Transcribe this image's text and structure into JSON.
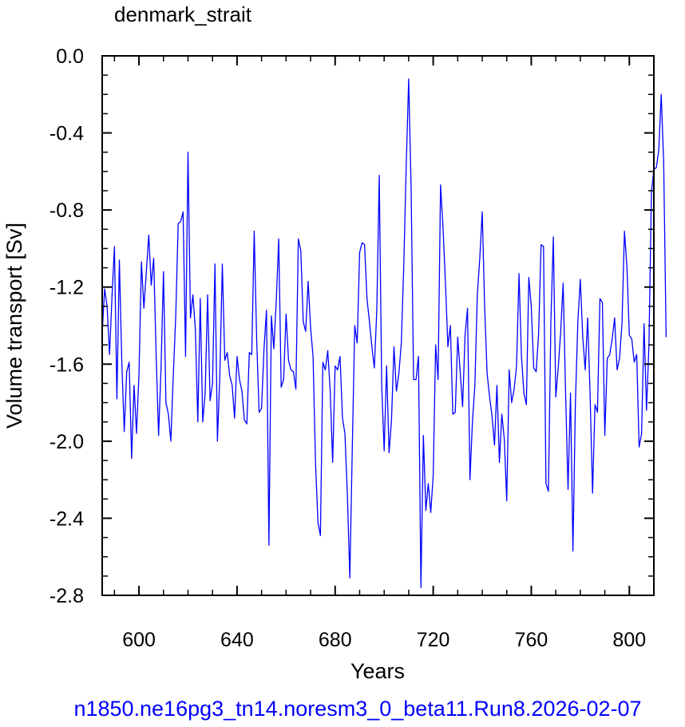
{
  "colors": {
    "line": "#0000ff",
    "axis": "#000000",
    "footer": "#0000ff",
    "background": "#ffffff"
  },
  "footer": {
    "text": "n1850.ne16pg3_tn14.noresm3_0_beta11.Run8.2026-02-07"
  },
  "chart_data": {
    "type": "line",
    "title": "denmark_strait",
    "xlabel": "Years",
    "ylabel": "Volume transport [Sv]",
    "xlim": [
      585,
      810
    ],
    "ylim": [
      -2.8,
      0.0
    ],
    "x_ticks": [
      600,
      640,
      680,
      720,
      760,
      800
    ],
    "x_tick_labels": [
      "600",
      "640",
      "680",
      "720",
      "760",
      "800"
    ],
    "y_ticks": [
      0.0,
      -0.4,
      -0.8,
      -1.2,
      -1.6,
      -2.0,
      -2.4,
      -2.8
    ],
    "y_tick_labels": [
      "0.0",
      "-0.4",
      "-0.8",
      "-1.2",
      "-1.6",
      "-2.0",
      "-2.4",
      "-2.8"
    ],
    "grid": false,
    "series": [
      {
        "x_start": 585,
        "x_step": 1,
        "values": [
          -1.44,
          -1.21,
          -1.3,
          -1.55,
          -1.25,
          -0.99,
          -1.78,
          -1.06,
          -1.59,
          -1.95,
          -1.64,
          -1.59,
          -2.09,
          -1.71,
          -1.96,
          -1.65,
          -1.07,
          -1.31,
          -1.12,
          -0.93,
          -1.19,
          -1.05,
          -1.55,
          -1.97,
          -1.62,
          -1.12,
          -1.8,
          -1.86,
          -2.0,
          -1.66,
          -1.35,
          -0.87,
          -0.86,
          -0.81,
          -1.56,
          -0.5,
          -1.36,
          -1.24,
          -1.42,
          -1.9,
          -1.26,
          -1.9,
          -1.75,
          -1.24,
          -1.79,
          -1.7,
          -1.08,
          -2.0,
          -1.65,
          -1.08,
          -1.58,
          -1.54,
          -1.66,
          -1.71,
          -1.88,
          -1.56,
          -1.68,
          -1.74,
          -1.89,
          -1.91,
          -1.54,
          -1.55,
          -0.91,
          -1.47,
          -1.85,
          -1.83,
          -1.52,
          -1.32,
          -2.54,
          -1.35,
          -1.52,
          -1.27,
          -0.95,
          -1.72,
          -1.68,
          -1.34,
          -1.58,
          -1.63,
          -1.64,
          -1.73,
          -0.95,
          -1.01,
          -1.38,
          -1.43,
          -1.17,
          -1.41,
          -1.56,
          -2.11,
          -2.42,
          -2.49,
          -1.59,
          -1.63,
          -1.53,
          -1.74,
          -2.11,
          -1.61,
          -1.63,
          -1.56,
          -1.88,
          -1.96,
          -2.28,
          -2.71,
          -2.04,
          -1.4,
          -1.49,
          -1.02,
          -0.97,
          -0.98,
          -1.26,
          -1.38,
          -1.51,
          -1.62,
          -1.32,
          -0.62,
          -1.71,
          -2.05,
          -1.61,
          -2.06,
          -1.89,
          -1.51,
          -1.74,
          -1.65,
          -1.49,
          -1.09,
          -0.57,
          -0.12,
          -0.69,
          -1.68,
          -1.68,
          -1.56,
          -2.76,
          -1.97,
          -2.36,
          -2.22,
          -2.37,
          -2.18,
          -1.5,
          -1.68,
          -0.67,
          -0.89,
          -1.18,
          -1.51,
          -1.4,
          -1.86,
          -1.85,
          -1.46,
          -1.64,
          -1.82,
          -1.45,
          -1.31,
          -2.2,
          -1.9,
          -1.71,
          -1.24,
          -1.05,
          -0.81,
          -1.31,
          -1.65,
          -1.77,
          -1.87,
          -2.02,
          -1.71,
          -2.11,
          -1.86,
          -1.99,
          -2.31,
          -1.63,
          -1.8,
          -1.73,
          -1.61,
          -1.13,
          -1.56,
          -1.75,
          -1.81,
          -1.15,
          -1.3,
          -1.62,
          -1.64,
          -1.44,
          -0.98,
          -0.99,
          -2.22,
          -2.26,
          -1.38,
          -0.94,
          -1.77,
          -1.62,
          -1.43,
          -1.18,
          -1.75,
          -2.25,
          -1.75,
          -2.57,
          -1.8,
          -1.38,
          -1.16,
          -1.46,
          -1.63,
          -1.36,
          -1.76,
          -2.27,
          -1.81,
          -1.85,
          -1.26,
          -1.28,
          -1.97,
          -1.57,
          -1.55,
          -1.47,
          -1.36,
          -1.63,
          -1.57,
          -1.39,
          -0.91,
          -1.09,
          -1.45,
          -1.47,
          -1.59,
          -1.55,
          -2.03,
          -1.96,
          -1.39,
          -1.84,
          -1.5,
          -0.71,
          -0.59,
          -0.58,
          -0.49,
          -0.2,
          -0.55,
          -1.46
        ]
      }
    ]
  }
}
